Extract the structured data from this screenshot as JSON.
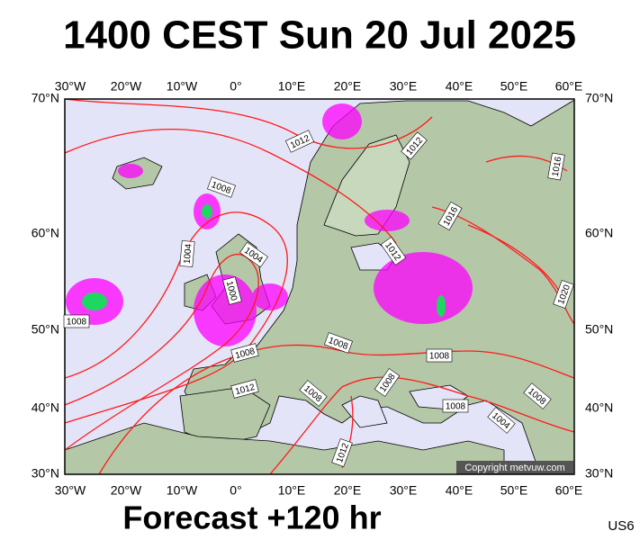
{
  "header": {
    "title": "1400 CEST Sun 20 Jul 2025"
  },
  "longitude_labels": [
    "30°W",
    "20°W",
    "10°W",
    "0°",
    "10°E",
    "20°E",
    "30°E",
    "40°E",
    "50°E",
    "60°E"
  ],
  "latitude_labels": [
    "70°N",
    "60°N",
    "50°N",
    "40°N",
    "30°N"
  ],
  "isobar_labels": [
    "1012",
    "1012",
    "1016",
    "1008",
    "1016",
    "1004",
    "1004",
    "1012",
    "1000",
    "1020",
    "1008",
    "1008",
    "1008",
    "1008",
    "1012",
    "1008",
    "1008",
    "1008",
    "1008",
    "1004",
    "1012"
  ],
  "copyright": "Copyright metvuw.com",
  "footer": {
    "text": "Forecast +120 hr",
    "station": "US6"
  }
}
